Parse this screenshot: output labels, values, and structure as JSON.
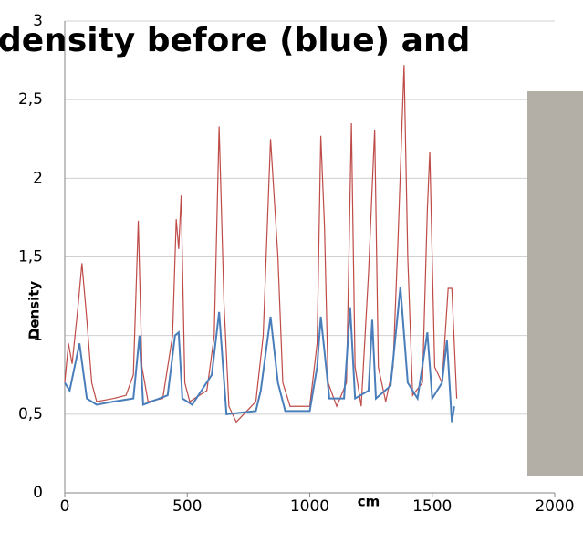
{
  "chart_data": {
    "type": "line",
    "title": "density before (blue) and",
    "x_label": "cm",
    "y_label": "Density",
    "xlim": [
      0,
      2000
    ],
    "xticks": [
      0,
      500,
      1000,
      1500,
      2000
    ],
    "ylim": [
      0,
      3
    ],
    "yticks": [
      0,
      {
        "value": 0.5,
        "label": "0,5"
      },
      1,
      {
        "value": 1.5,
        "label": "1,5"
      },
      2,
      {
        "value": 2.5,
        "label": "2,5"
      },
      3
    ],
    "grid": true,
    "series": [
      {
        "color": "#4a7ebb",
        "x": [
          0,
          20,
          60,
          90,
          130,
          200,
          280,
          305,
          320,
          420,
          450,
          465,
          480,
          520,
          600,
          630,
          660,
          780,
          800,
          840,
          870,
          900,
          1000,
          1030,
          1045,
          1060,
          1080,
          1140,
          1165,
          1185,
          1240,
          1255,
          1270,
          1330,
          1370,
          1400,
          1440,
          1480,
          1500,
          1540,
          1560,
          1580,
          1590
        ],
        "values": [
          0.7,
          0.65,
          0.95,
          0.6,
          0.56,
          0.58,
          0.6,
          1.0,
          0.56,
          0.62,
          1.0,
          1.02,
          0.6,
          0.56,
          0.75,
          1.15,
          0.5,
          0.52,
          0.65,
          1.12,
          0.7,
          0.52,
          0.52,
          0.8,
          1.12,
          0.9,
          0.6,
          0.6,
          1.18,
          0.6,
          0.65,
          1.1,
          0.6,
          0.68,
          1.31,
          0.7,
          0.6,
          1.02,
          0.6,
          0.7,
          0.97,
          0.45,
          0.55
        ]
      },
      {
        "color": "#be4b48",
        "x": [
          0,
          15,
          30,
          55,
          70,
          90,
          110,
          130,
          200,
          250,
          280,
          300,
          315,
          340,
          400,
          440,
          455,
          465,
          475,
          490,
          510,
          580,
          610,
          630,
          650,
          670,
          700,
          780,
          810,
          840,
          870,
          890,
          920,
          1000,
          1030,
          1045,
          1060,
          1075,
          1110,
          1150,
          1170,
          1185,
          1210,
          1240,
          1265,
          1280,
          1310,
          1340,
          1360,
          1385,
          1400,
          1420,
          1460,
          1480,
          1490,
          1510,
          1540,
          1565,
          1580,
          1600
        ],
        "values": [
          0.7,
          0.95,
          0.82,
          1.2,
          1.46,
          1.1,
          0.7,
          0.58,
          0.6,
          0.62,
          0.75,
          1.73,
          0.8,
          0.58,
          0.6,
          1.0,
          1.74,
          1.55,
          1.89,
          0.7,
          0.58,
          0.65,
          1.0,
          2.33,
          1.2,
          0.55,
          0.45,
          0.58,
          1.0,
          2.25,
          1.5,
          0.7,
          0.55,
          0.55,
          0.95,
          2.27,
          1.7,
          0.7,
          0.55,
          0.7,
          2.35,
          0.8,
          0.55,
          1.4,
          2.31,
          0.8,
          0.58,
          0.8,
          1.6,
          2.72,
          1.5,
          0.62,
          0.7,
          1.8,
          2.17,
          0.8,
          0.7,
          1.3,
          1.3,
          0.6
        ]
      }
    ]
  }
}
